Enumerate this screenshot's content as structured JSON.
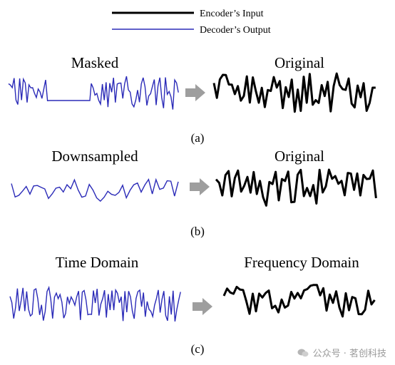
{
  "legend": {
    "input_label": "Encoder’s Input",
    "output_label": "Decoder’s Output",
    "input_color": "#000000",
    "output_color": "#2b2bb8"
  },
  "panels": [
    {
      "id": "a",
      "left_title": "Masked",
      "right_title": "Original",
      "caption": "(a)",
      "left_signal": "masked"
    },
    {
      "id": "b",
      "left_title": "Downsampled",
      "right_title": "Original",
      "caption": "(b)",
      "left_signal": "downsampled"
    },
    {
      "id": "c",
      "left_title": "Time Domain",
      "right_title": "Frequency Domain",
      "caption": "(c)",
      "left_signal": "time"
    }
  ],
  "arrow_color": "#9e9e9e",
  "watermark": {
    "text": "公众号 · 茗创科技",
    "icon": "wechat-icon"
  }
}
